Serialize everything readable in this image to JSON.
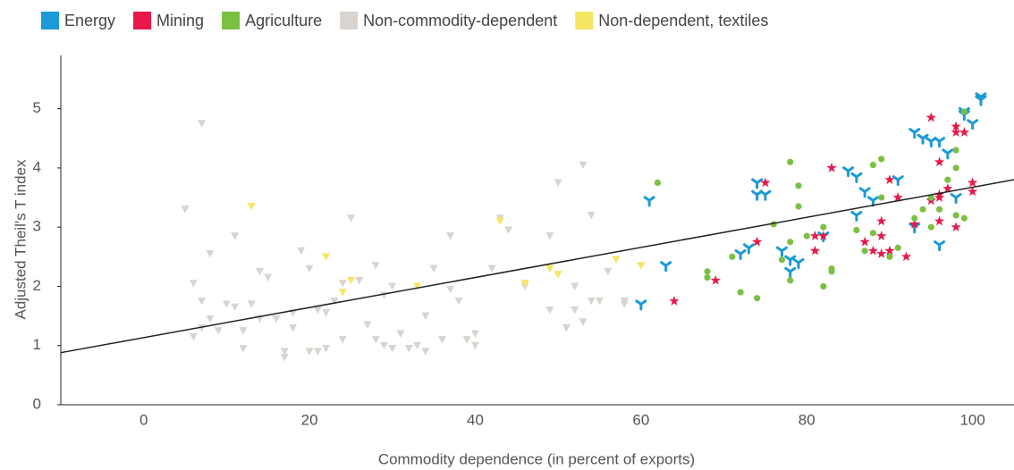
{
  "chart_data": {
    "type": "scatter",
    "xlabel": "Commodity dependence (in percent of exports)",
    "ylabel": "Adjusted Theil's T index",
    "xlim": [
      -10,
      105
    ],
    "ylim": [
      0,
      5.9
    ],
    "xticks": [
      0,
      20,
      40,
      60,
      80,
      100
    ],
    "yticks": [
      0,
      1,
      2,
      3,
      4,
      5
    ],
    "trendline": {
      "x": [
        -10,
        105
      ],
      "y": [
        0.88,
        3.8
      ],
      "color": "#222"
    },
    "series": [
      {
        "name": "Energy",
        "color": "#1a9ad6",
        "marker": "y-shape",
        "x": [
          60,
          61,
          63,
          72,
          73,
          74,
          74,
          75,
          77,
          78,
          78,
          79,
          82,
          85,
          86,
          86,
          87,
          88,
          91,
          93,
          93,
          94,
          95,
          96,
          96,
          97,
          98,
          99,
          99,
          100,
          101,
          101
        ],
        "y": [
          1.7,
          3.45,
          2.35,
          2.55,
          2.65,
          3.75,
          3.55,
          3.55,
          2.6,
          2.45,
          2.25,
          2.4,
          2.85,
          3.95,
          3.2,
          3.85,
          3.6,
          3.45,
          3.8,
          3.0,
          4.6,
          4.5,
          4.45,
          4.45,
          2.7,
          4.25,
          3.5,
          4.9,
          4.95,
          4.75,
          5.15,
          5.2
        ]
      },
      {
        "name": "Mining",
        "color": "#e8194a",
        "marker": "star",
        "x": [
          64,
          69,
          74,
          75,
          81,
          81,
          82,
          83,
          87,
          88,
          89,
          89,
          89,
          90,
          90,
          91,
          92,
          93,
          95,
          95,
          96,
          96,
          96,
          96,
          97,
          98,
          98,
          98,
          99,
          100,
          100
        ],
        "y": [
          1.75,
          2.1,
          2.75,
          3.75,
          2.6,
          2.85,
          2.85,
          4.0,
          2.75,
          2.6,
          2.55,
          3.1,
          2.85,
          2.6,
          3.8,
          3.5,
          2.5,
          3.05,
          3.45,
          4.85,
          3.1,
          3.55,
          3.5,
          4.1,
          3.65,
          3.0,
          4.7,
          4.6,
          4.6,
          3.6,
          3.75
        ]
      },
      {
        "name": "Agriculture",
        "color": "#7bc043",
        "marker": "circle",
        "x": [
          62,
          68,
          68,
          71,
          72,
          74,
          76,
          77,
          78,
          78,
          78,
          79,
          79,
          80,
          82,
          82,
          83,
          83,
          86,
          87,
          88,
          88,
          89,
          89,
          90,
          91,
          93,
          94,
          95,
          95,
          96,
          97,
          98,
          98,
          98,
          99,
          99
        ],
        "y": [
          3.75,
          2.25,
          2.15,
          2.5,
          1.9,
          1.8,
          3.05,
          2.45,
          4.1,
          2.1,
          2.75,
          3.7,
          3.35,
          2.85,
          3.0,
          2.0,
          2.3,
          2.25,
          2.95,
          2.6,
          2.9,
          4.05,
          3.5,
          4.15,
          2.5,
          2.65,
          3.15,
          3.3,
          3.5,
          3.0,
          3.3,
          3.8,
          4.3,
          3.2,
          4.0,
          3.15,
          4.95
        ]
      },
      {
        "name": "Non-commodity-dependent",
        "color": "#d9d4cf",
        "marker": "triangle-down",
        "x": [
          5,
          6,
          6,
          7,
          7,
          7,
          8,
          8,
          9,
          10,
          11,
          11,
          12,
          12,
          13,
          14,
          14,
          15,
          16,
          17,
          17,
          18,
          18,
          19,
          20,
          20,
          21,
          21,
          22,
          22,
          23,
          24,
          24,
          25,
          26,
          27,
          28,
          28,
          29,
          29,
          30,
          30,
          31,
          32,
          33,
          34,
          34,
          35,
          36,
          37,
          37,
          38,
          39,
          40,
          40,
          42,
          43,
          44,
          46,
          49,
          49,
          50,
          51,
          52,
          52,
          53,
          53,
          54,
          54,
          55,
          56,
          58,
          58
        ],
        "y": [
          3.3,
          1.15,
          2.05,
          1.75,
          1.3,
          4.75,
          2.55,
          1.45,
          1.25,
          1.7,
          2.85,
          1.65,
          1.25,
          0.95,
          1.7,
          1.45,
          2.25,
          2.15,
          1.45,
          0.9,
          0.8,
          1.55,
          1.3,
          2.6,
          2.3,
          0.9,
          0.9,
          1.6,
          1.55,
          0.95,
          1.75,
          1.1,
          2.05,
          3.15,
          2.1,
          1.35,
          2.35,
          1.1,
          1.85,
          1.0,
          2.0,
          0.95,
          1.2,
          0.95,
          1.0,
          0.9,
          1.5,
          2.3,
          1.1,
          1.95,
          2.85,
          1.75,
          1.1,
          1.0,
          1.2,
          2.3,
          3.15,
          2.95,
          2.0,
          2.85,
          1.6,
          3.75,
          1.3,
          2.0,
          1.6,
          4.05,
          1.4,
          3.2,
          1.75,
          1.75,
          2.25,
          1.75,
          1.7
        ]
      },
      {
        "name": "Non-dependent, textiles",
        "color": "#f5e663",
        "marker": "triangle-down",
        "x": [
          13,
          22,
          24,
          25,
          33,
          43,
          46,
          49,
          50,
          57,
          60
        ],
        "y": [
          3.35,
          2.5,
          1.9,
          2.1,
          2.0,
          3.1,
          2.05,
          2.3,
          2.2,
          2.45,
          2.35
        ]
      }
    ]
  }
}
